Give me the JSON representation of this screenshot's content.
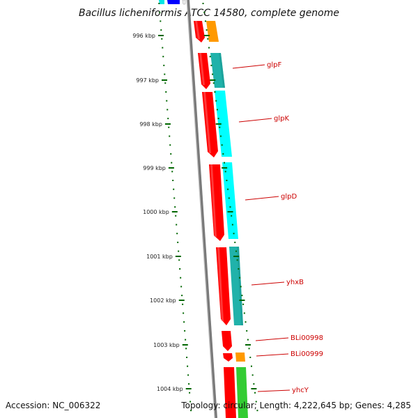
{
  "title": "Bacillus licheniformis ATCC 14580, complete genome",
  "accession": "Accession: NC_006322",
  "topology": "Topology: circular; Length: 4,222,645 bp; Genes: 4,285",
  "colors": {
    "backbone": "#808080",
    "tick": "#006600",
    "label": "#cc0000",
    "red": "#ff0000",
    "orange": "#ff9900",
    "cyan": "#00ffff",
    "teal": "#20b2aa",
    "green": "#33cc33",
    "blue": "#0000ff"
  },
  "ticks": [
    {
      "label": "996 kbp"
    },
    {
      "label": "997 kbp"
    },
    {
      "label": "998 kbp"
    },
    {
      "label": "999 kbp"
    },
    {
      "label": "1000 kbp"
    },
    {
      "label": "1001 kbp"
    },
    {
      "label": "1002 kbp"
    },
    {
      "label": "1003 kbp"
    },
    {
      "label": "1004 kbp"
    }
  ],
  "gene_labels": [
    "glpF",
    "glpK",
    "glpD",
    "yhxB",
    "BLi00998",
    "BLi00999",
    "yhcY"
  ]
}
